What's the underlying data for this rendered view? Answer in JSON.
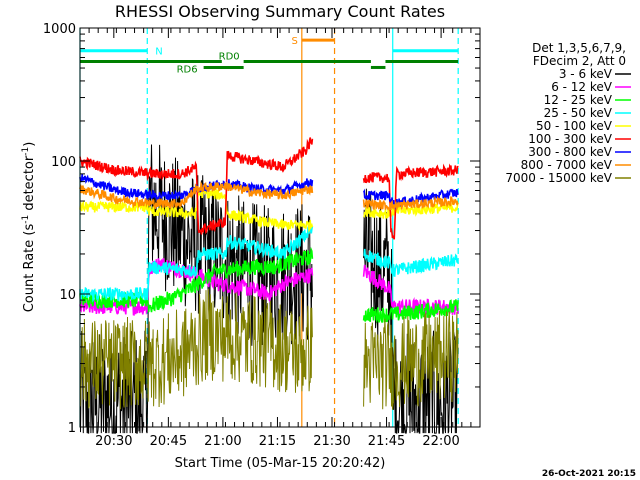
{
  "chart_data": {
    "type": "line",
    "title": "RHESSI Observing Summary Count Rates",
    "xlabel": "Start Time (05-Mar-15 20:20:42)",
    "ylabel_main": "Count Rate (s",
    "ylabel_sup1": "-1",
    "ylabel_mid": " detector",
    "ylabel_sup2": "-1",
    "ylabel_end": ")",
    "y_scale": "log",
    "ylim": [
      1,
      1000
    ],
    "xlim": [
      0,
      110
    ],
    "x_tick_labels": [
      "20:30",
      "20:45",
      "21:00",
      "21:15",
      "21:30",
      "21:45",
      "22:00"
    ],
    "x_tick_values": [
      9.3,
      24.3,
      39.3,
      54.3,
      69.3,
      84.3,
      99.3
    ],
    "y_tick_labels": [
      "1",
      "10",
      "100",
      "1000"
    ],
    "y_tick_values": [
      1,
      10,
      100,
      1000
    ],
    "legend_header": [
      "Det 1,3,5,6,7,9,",
      "FDecim 2, Att 0"
    ],
    "legend_position": "right",
    "gaps": [
      [
        64,
        78
      ]
    ],
    "series": [
      {
        "name": "3 - 6 keV",
        "color": "#000000",
        "noise": 0.55,
        "x": [
          0,
          18.5,
          19,
          22,
          30,
          38,
          45,
          52,
          56,
          63.5,
          78,
          85.5,
          86,
          104
        ],
        "y": [
          1.5,
          1.5,
          48,
          40,
          25,
          20,
          15,
          13,
          14,
          15,
          20,
          13,
          1.5,
          1.5
        ]
      },
      {
        "name": "6 - 12 keV",
        "color": "#ff00ff",
        "noise": 0.06,
        "x": [
          0,
          18.5,
          19,
          22,
          32,
          38,
          46,
          52,
          56,
          63.5,
          78,
          85,
          86,
          104
        ],
        "y": [
          8,
          8,
          15,
          17,
          14,
          12,
          11,
          10,
          12,
          14,
          15,
          11,
          8,
          8
        ]
      },
      {
        "name": "12 - 25 keV",
        "color": "#00ff00",
        "noise": 0.06,
        "x": [
          0,
          18.5,
          19,
          28,
          38,
          48,
          54,
          56,
          63.5,
          78,
          85,
          86,
          104
        ],
        "y": [
          9,
          9,
          8,
          10,
          15,
          16,
          16,
          17,
          19,
          7,
          7,
          7,
          8
        ]
      },
      {
        "name": "25 - 50 keV",
        "color": "#00ffff",
        "noise": 0.05,
        "x": [
          0,
          18.5,
          19,
          32,
          32.5,
          40,
          40.5,
          50,
          56,
          63.5,
          78,
          85,
          86,
          104
        ],
        "y": [
          10,
          10,
          16,
          15,
          20,
          20,
          25,
          22,
          20,
          30,
          20,
          17,
          15,
          18
        ]
      },
      {
        "name": "50 - 100 keV",
        "color": "#ffff00",
        "noise": 0.04,
        "x": [
          0,
          18.5,
          19,
          32,
          32.5,
          40,
          40.5,
          50,
          56,
          63.5,
          78,
          85,
          86,
          104
        ],
        "y": [
          45,
          45,
          42,
          40,
          58,
          55,
          40,
          35,
          33,
          33,
          42,
          40,
          42,
          45
        ]
      },
      {
        "name": "100 - 300 keV",
        "color": "#ff0000",
        "noise": 0.04,
        "x": [
          0,
          10,
          20,
          28,
          32,
          32.5,
          40,
          40.5,
          48,
          56,
          62,
          63.5,
          78,
          85,
          85.5,
          86.5,
          87,
          104
        ],
        "y": [
          100,
          85,
          80,
          80,
          90,
          30,
          35,
          110,
          100,
          90,
          120,
          140,
          75,
          75,
          28,
          28,
          80,
          85
        ]
      },
      {
        "name": "300 - 800 keV",
        "color": "#0000ff",
        "noise": 0.035,
        "x": [
          0,
          10,
          20,
          28,
          32,
          40,
          48,
          56,
          63.5,
          78,
          85,
          86,
          104
        ],
        "y": [
          75,
          60,
          55,
          55,
          62,
          68,
          62,
          60,
          70,
          55,
          55,
          48,
          58
        ]
      },
      {
        "name": "800 - 7000 keV",
        "color": "#ff8c00",
        "noise": 0.035,
        "x": [
          0,
          10,
          20,
          28,
          32,
          40,
          48,
          56,
          63.5,
          78,
          85,
          86,
          104
        ],
        "y": [
          62,
          52,
          48,
          48,
          62,
          65,
          58,
          55,
          62,
          48,
          46,
          46,
          50
        ]
      },
      {
        "name": "7000 - 15000 keV",
        "color": "#808000",
        "noise": 0.35,
        "x": [
          0,
          18.5,
          19,
          28,
          35,
          48,
          56,
          60,
          63.5,
          78,
          85,
          86,
          104
        ],
        "y": [
          3,
          3,
          3,
          3.5,
          5,
          4.5,
          4,
          3.5,
          4,
          3,
          3,
          3,
          3.5
        ]
      }
    ],
    "annotations": [
      {
        "label": "N",
        "color": "#00ffff",
        "segments": [
          [
            0,
            18.5
          ],
          [
            86,
            104
          ]
        ],
        "y": 675
      },
      {
        "label": "S",
        "color": "#ff8c00",
        "segments": [
          [
            61,
            70
          ]
        ],
        "y": 810
      },
      {
        "label": "RD0",
        "color": "#008000",
        "segments": [
          [
            0,
            39
          ],
          [
            45,
            80
          ],
          [
            84,
            104
          ]
        ],
        "y": 560
      },
      {
        "label": "RD6",
        "color": "#008000",
        "segments": [
          [
            34,
            45
          ],
          [
            80,
            84
          ]
        ],
        "y": 505
      }
    ],
    "vlines": [
      {
        "x": 0,
        "color": "#00ffff",
        "style": "solid"
      },
      {
        "x": 18.5,
        "color": "#00ffff",
        "style": "dashed"
      },
      {
        "x": 61,
        "color": "#ff8c00",
        "style": "solid"
      },
      {
        "x": 70,
        "color": "#ff8c00",
        "style": "dashed"
      },
      {
        "x": 86,
        "color": "#00ffff",
        "style": "solid"
      },
      {
        "x": 104,
        "color": "#00ffff",
        "style": "dashed"
      }
    ]
  },
  "footer": {
    "timestamp": "26-Oct-2021 20:15"
  }
}
